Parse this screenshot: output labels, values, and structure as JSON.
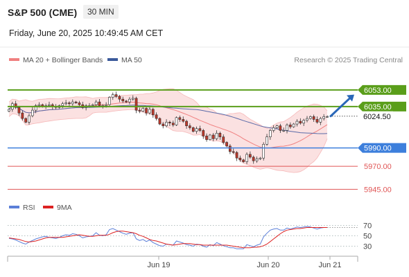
{
  "header": {
    "instrument": "S&P 500 (CME)",
    "timeframe": "30 MIN",
    "datetime": "Friday, June 20, 2025 10:49:45 AM CET"
  },
  "legend": {
    "ma20": "MA 20 + Bollinger Bands",
    "ma50": "MA 50",
    "credit": "Research © 2025 Trading Central"
  },
  "colors": {
    "green_level": "#5a9e1a",
    "blue_level": "#3d7fdc",
    "red_level": "#e05555",
    "bollinger_fill": "#fadcdc",
    "ma20": "#f08080",
    "ma50": "#5a6aa8",
    "candle_up": "#2e8b57",
    "candle_down": "#c0392b",
    "rsi": "#5b7fd8",
    "rsi_ma": "#dd2222",
    "arrow": "#2a67b8"
  },
  "chart_data": {
    "type": "candlestick",
    "price_axis": {
      "ylim": [
        5940,
        6068
      ]
    },
    "levels": [
      {
        "label": "6053.00",
        "value": 6053.0,
        "kind": "resistance"
      },
      {
        "label": "6035.00",
        "value": 6035.0,
        "kind": "resistance"
      },
      {
        "label": "6024.50",
        "value": 6024.5,
        "kind": "current"
      },
      {
        "label": "5990.00",
        "value": 5990.0,
        "kind": "pivot"
      },
      {
        "label": "5970.00",
        "value": 5970.0,
        "kind": "support"
      },
      {
        "label": "5945.00",
        "value": 5945.0,
        "kind": "support"
      }
    ],
    "x_ticks": [
      "Jun 19",
      "Jun 20",
      "Jun 21"
    ],
    "closes": [
      6032,
      6038,
      6034,
      6028,
      6022,
      6018,
      6025,
      6031,
      6036,
      6037,
      6035,
      6036,
      6037,
      6035,
      6034,
      6036,
      6038,
      6039,
      6038,
      6040,
      6039,
      6037,
      6034,
      6036,
      6036,
      6037,
      6040,
      6036,
      6036,
      6037,
      6045,
      6048,
      6046,
      6043,
      6041,
      6040,
      6043,
      6044,
      6031,
      6030,
      6033,
      6028,
      6032,
      6026,
      6022,
      6016,
      6014,
      6018,
      6017,
      6015,
      6023,
      6021,
      6019,
      6014,
      6012,
      6008,
      6011,
      6009,
      6003,
      5999,
      6004,
      6000,
      6006,
      6002,
      5996,
      5992,
      5986,
      5985,
      5979,
      5977,
      5975,
      5983,
      5980,
      5976,
      5978,
      5979,
      5994,
      6002,
      6009,
      6012,
      6014,
      6009,
      6009,
      6015,
      6013,
      6016,
      6019,
      6017,
      6020,
      6022,
      6024,
      6021,
      6018,
      6022,
      6024,
      6024
    ],
    "rsi": {
      "ylim": [
        20,
        80
      ],
      "ticks": [
        70,
        50,
        30
      ],
      "series": [
        45,
        44,
        42,
        39,
        36,
        34,
        38,
        41,
        44,
        46,
        48,
        49,
        47,
        46,
        45,
        47,
        50,
        52,
        51,
        54,
        53,
        50,
        46,
        48,
        49,
        50,
        56,
        51,
        50,
        52,
        62,
        64,
        61,
        58,
        55,
        53,
        55,
        56,
        44,
        41,
        43,
        39,
        42,
        37,
        34,
        31,
        30,
        34,
        33,
        32,
        40,
        38,
        36,
        33,
        32,
        30,
        34,
        33,
        30,
        28,
        33,
        31,
        37,
        34,
        31,
        29,
        27,
        27,
        25,
        25,
        25,
        33,
        31,
        29,
        32,
        34,
        48,
        55,
        61,
        63,
        64,
        61,
        61,
        65,
        63,
        65,
        67,
        66,
        67,
        68,
        67,
        65,
        63,
        65,
        66,
        66
      ],
      "ma_series": [
        46,
        45,
        44,
        43,
        41,
        39,
        38,
        39,
        40,
        42,
        44,
        46,
        47,
        47,
        47,
        47,
        47,
        48,
        49,
        50,
        51,
        52,
        51,
        50,
        49,
        49,
        50,
        51,
        51,
        51,
        53,
        56,
        58,
        59,
        59,
        58,
        57,
        56,
        54,
        51,
        49,
        46,
        43,
        41,
        40,
        38,
        36,
        34,
        33,
        32,
        33,
        34,
        35,
        35,
        35,
        34,
        33,
        33,
        32,
        32,
        32,
        32,
        32,
        32,
        32,
        32,
        31,
        30,
        29,
        28,
        27,
        27,
        27,
        28,
        28,
        29,
        31,
        34,
        39,
        44,
        49,
        54,
        58,
        61,
        62,
        63,
        64,
        64,
        65,
        66,
        66,
        66,
        66,
        66,
        66,
        66
      ]
    },
    "legend_rsi": [
      "RSI",
      "9MA"
    ]
  }
}
